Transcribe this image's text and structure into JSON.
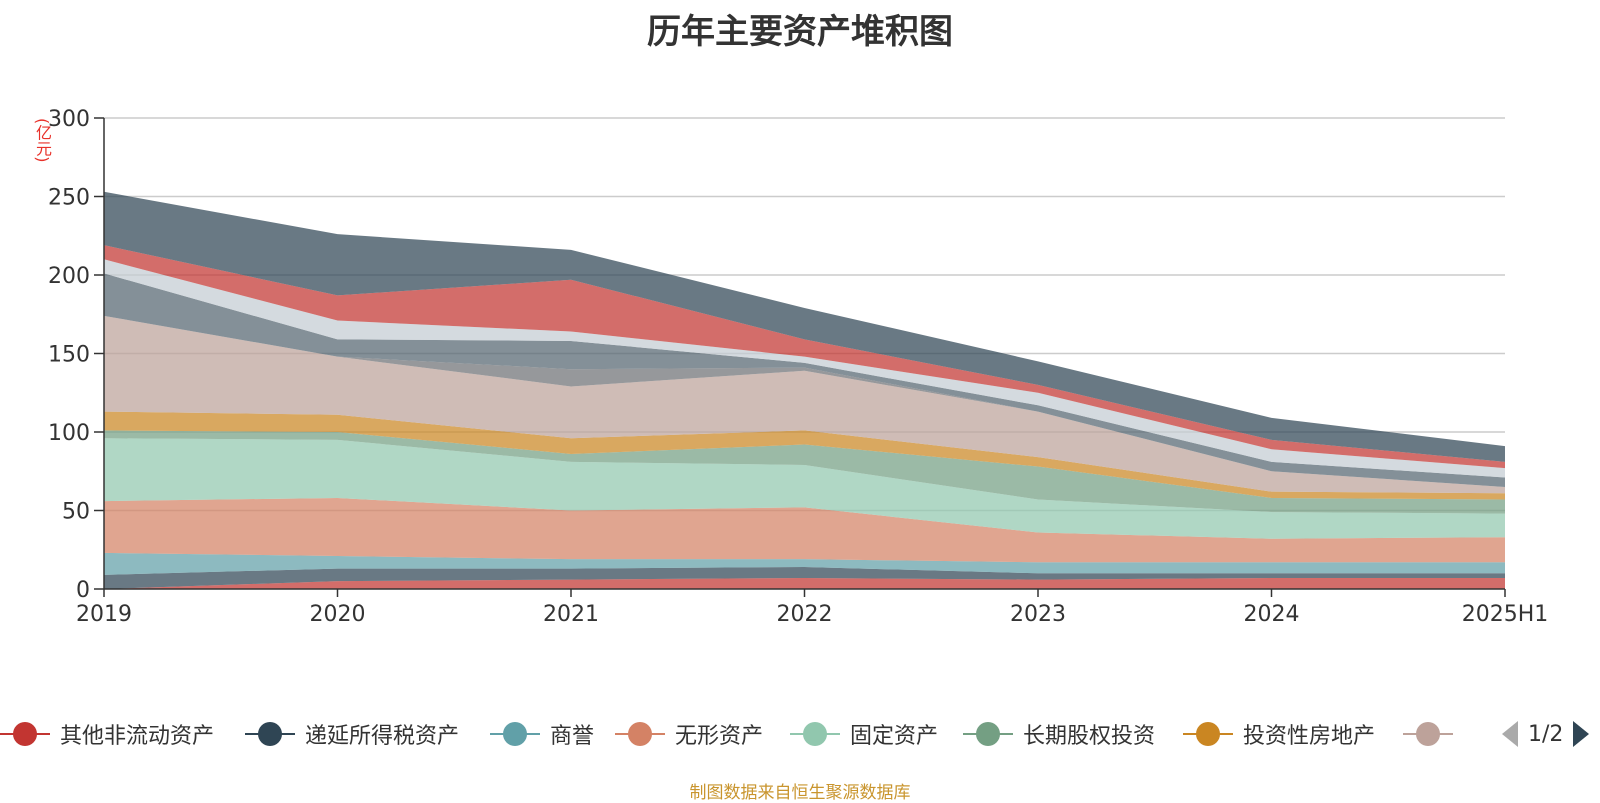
{
  "chart_data": {
    "type": "area",
    "stacked": true,
    "title": "历年主要资产堆积图",
    "y_unit": "(亿元)",
    "categories": [
      "2019",
      "2020",
      "2021",
      "2022",
      "2023",
      "2024",
      "2025H1"
    ],
    "ylim": [
      0,
      300
    ],
    "yticks": [
      0,
      50,
      100,
      150,
      200,
      250,
      300
    ],
    "grid": true,
    "legend_position": "bottom",
    "series": [
      {
        "name": "其他非流动资产",
        "color": "#c23531",
        "values": [
          0,
          5,
          6,
          7,
          6,
          7,
          7
        ]
      },
      {
        "name": "递延所得税资产",
        "color": "#2f4554",
        "values": [
          9,
          8,
          7,
          7,
          4,
          3,
          3
        ]
      },
      {
        "name": "商誉",
        "color": "#61a0a8",
        "values": [
          14,
          8,
          6,
          5,
          7,
          7,
          7
        ]
      },
      {
        "name": "无形资产",
        "color": "#d48265",
        "values": [
          33,
          37,
          31,
          33,
          19,
          15,
          16
        ]
      },
      {
        "name": "固定资产",
        "color": "#91c7ae",
        "values": [
          40,
          37,
          31,
          27,
          21,
          17,
          15
        ]
      },
      {
        "name": "长期股权投资",
        "color": "#749f83",
        "values": [
          5,
          5,
          5,
          13,
          21,
          9,
          9
        ]
      },
      {
        "name": "投资性房地产",
        "color": "#ca8622",
        "values": [
          12,
          11,
          10,
          9,
          6,
          4,
          4
        ]
      },
      {
        "color": "#bda29a",
        "values": [
          61,
          37,
          33,
          38,
          29,
          13,
          4
        ]
      },
      {
        "color": "#6e7074",
        "values": [
          0,
          0,
          11,
          2,
          0,
          0,
          0
        ]
      },
      {
        "color": "#546570",
        "values": [
          27,
          11,
          18,
          3,
          4,
          6,
          6
        ]
      },
      {
        "color": "#c4ccd3",
        "values": [
          9,
          12,
          6,
          4,
          8,
          8,
          6
        ]
      },
      {
        "color": "#c23531",
        "values": [
          9,
          16,
          33,
          11,
          5,
          6,
          4
        ]
      },
      {
        "color": "#2f4554",
        "values": [
          34,
          39,
          19,
          20,
          15,
          14,
          10
        ]
      }
    ]
  },
  "legend": {
    "page_text": "1/2",
    "prev_icon": "triangle-left-icon",
    "next_icon": "triangle-right-icon"
  },
  "source_text": "制图数据来自恒生聚源数据库"
}
